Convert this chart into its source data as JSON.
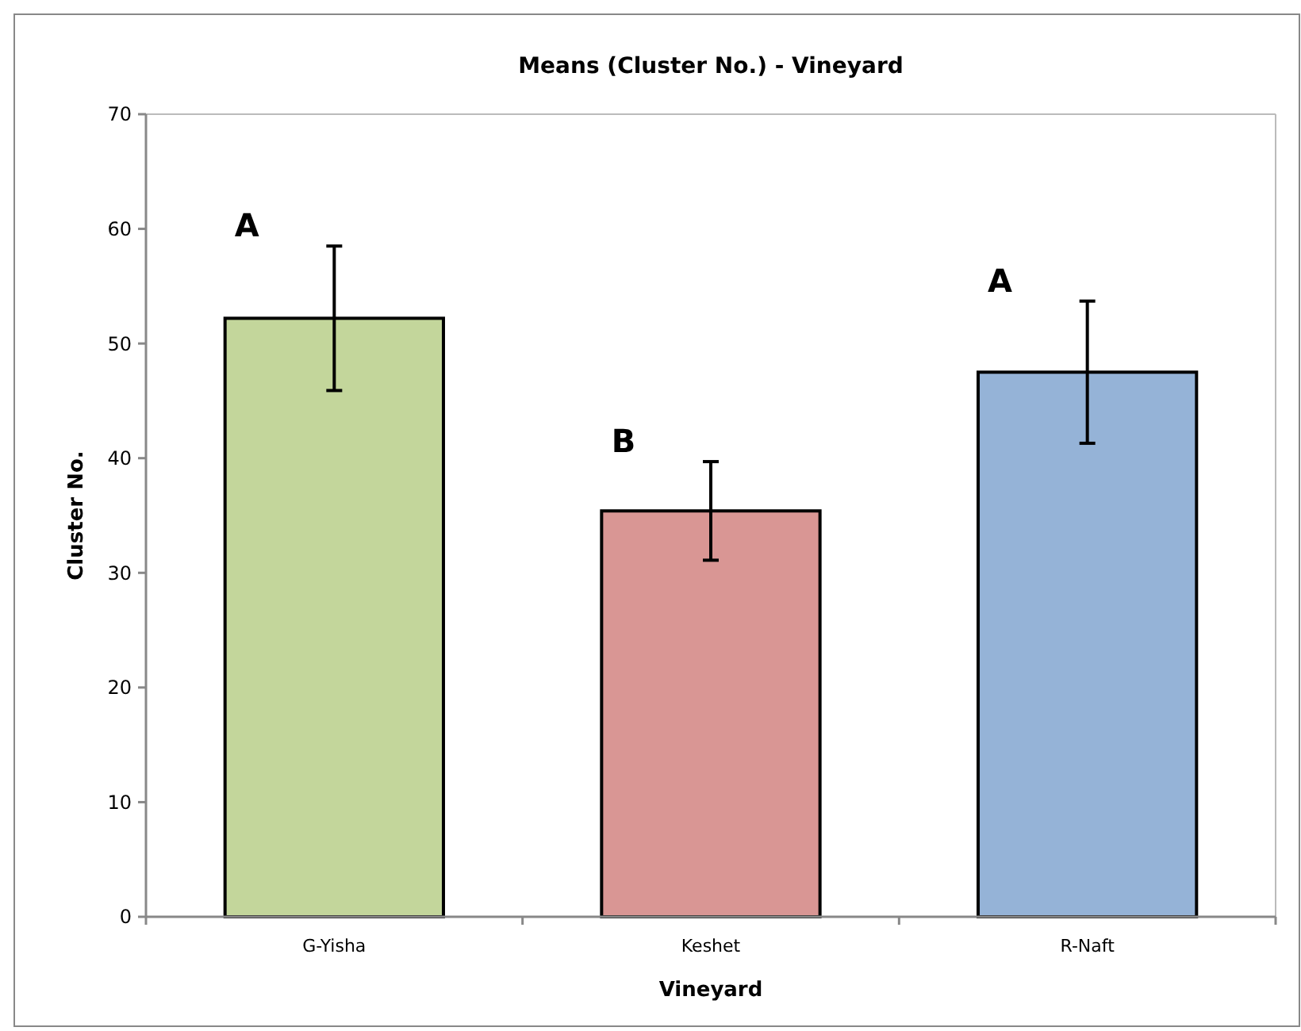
{
  "chart_data": {
    "type": "bar",
    "title": "Means (Cluster No.) - Vineyard",
    "xlabel": "Vineyard",
    "ylabel": "Cluster No.",
    "categories": [
      "G-Yisha",
      "Keshet",
      "R-Naft"
    ],
    "values": [
      52.2,
      35.4,
      47.5
    ],
    "colors": [
      "#c3d69b",
      "#d99694",
      "#95b3d7"
    ],
    "errors": [
      6.3,
      4.3,
      6.2
    ],
    "ylim": [
      0,
      70
    ],
    "yticks": [
      0,
      10,
      20,
      30,
      40,
      50,
      60,
      70
    ],
    "grid": false,
    "annotations": [
      "A",
      "B",
      "A"
    ]
  }
}
